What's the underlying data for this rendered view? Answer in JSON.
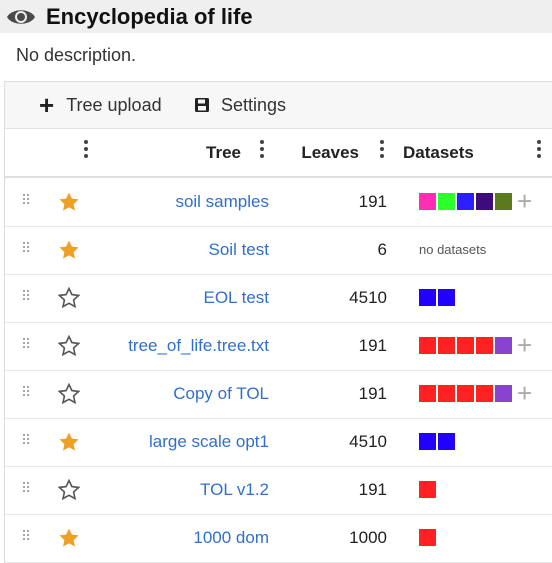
{
  "header": {
    "title": "Encyclopedia of life",
    "description": "No description."
  },
  "toolbar": {
    "tree_upload_label": "Tree upload",
    "settings_label": "Settings"
  },
  "table": {
    "columns": {
      "tree": "Tree",
      "leaves": "Leaves",
      "datasets": "Datasets"
    },
    "no_datasets_text": "no datasets",
    "rows": [
      {
        "name": "soil samples",
        "leaves": "191",
        "starred": true,
        "datasets": [
          "#ff2cb4",
          "#2cff2c",
          "#2a1fff",
          "#3d0b7e",
          "#5a7a1c"
        ],
        "add": true
      },
      {
        "name": "Soil test",
        "leaves": "6",
        "starred": true,
        "datasets": [],
        "add": false
      },
      {
        "name": "EOL test",
        "leaves": "4510",
        "starred": false,
        "datasets": [
          "#2200ff",
          "#2200ff"
        ],
        "add": false
      },
      {
        "name": "tree_of_life.tree.txt",
        "leaves": "191",
        "starred": false,
        "datasets": [
          "#ff2222",
          "#ff2222",
          "#ff2222",
          "#ff2222",
          "#8844cc"
        ],
        "add": true
      },
      {
        "name": "Copy of TOL",
        "leaves": "191",
        "starred": false,
        "datasets": [
          "#ff2222",
          "#ff2222",
          "#ff2222",
          "#ff2222",
          "#8844cc"
        ],
        "add": true
      },
      {
        "name": "large scale opt1",
        "leaves": "4510",
        "starred": true,
        "datasets": [
          "#2200ff",
          "#2200ff"
        ],
        "add": false
      },
      {
        "name": "TOL v1.2",
        "leaves": "191",
        "starred": false,
        "datasets": [
          "#ff2222"
        ],
        "add": false
      },
      {
        "name": "1000 dom",
        "leaves": "1000",
        "starred": true,
        "datasets": [
          "#ff2222"
        ],
        "add": false
      }
    ]
  },
  "colors": {
    "link": "#2f6fd0",
    "star": "#f0a020",
    "add_icon": "#aaaaaa"
  }
}
